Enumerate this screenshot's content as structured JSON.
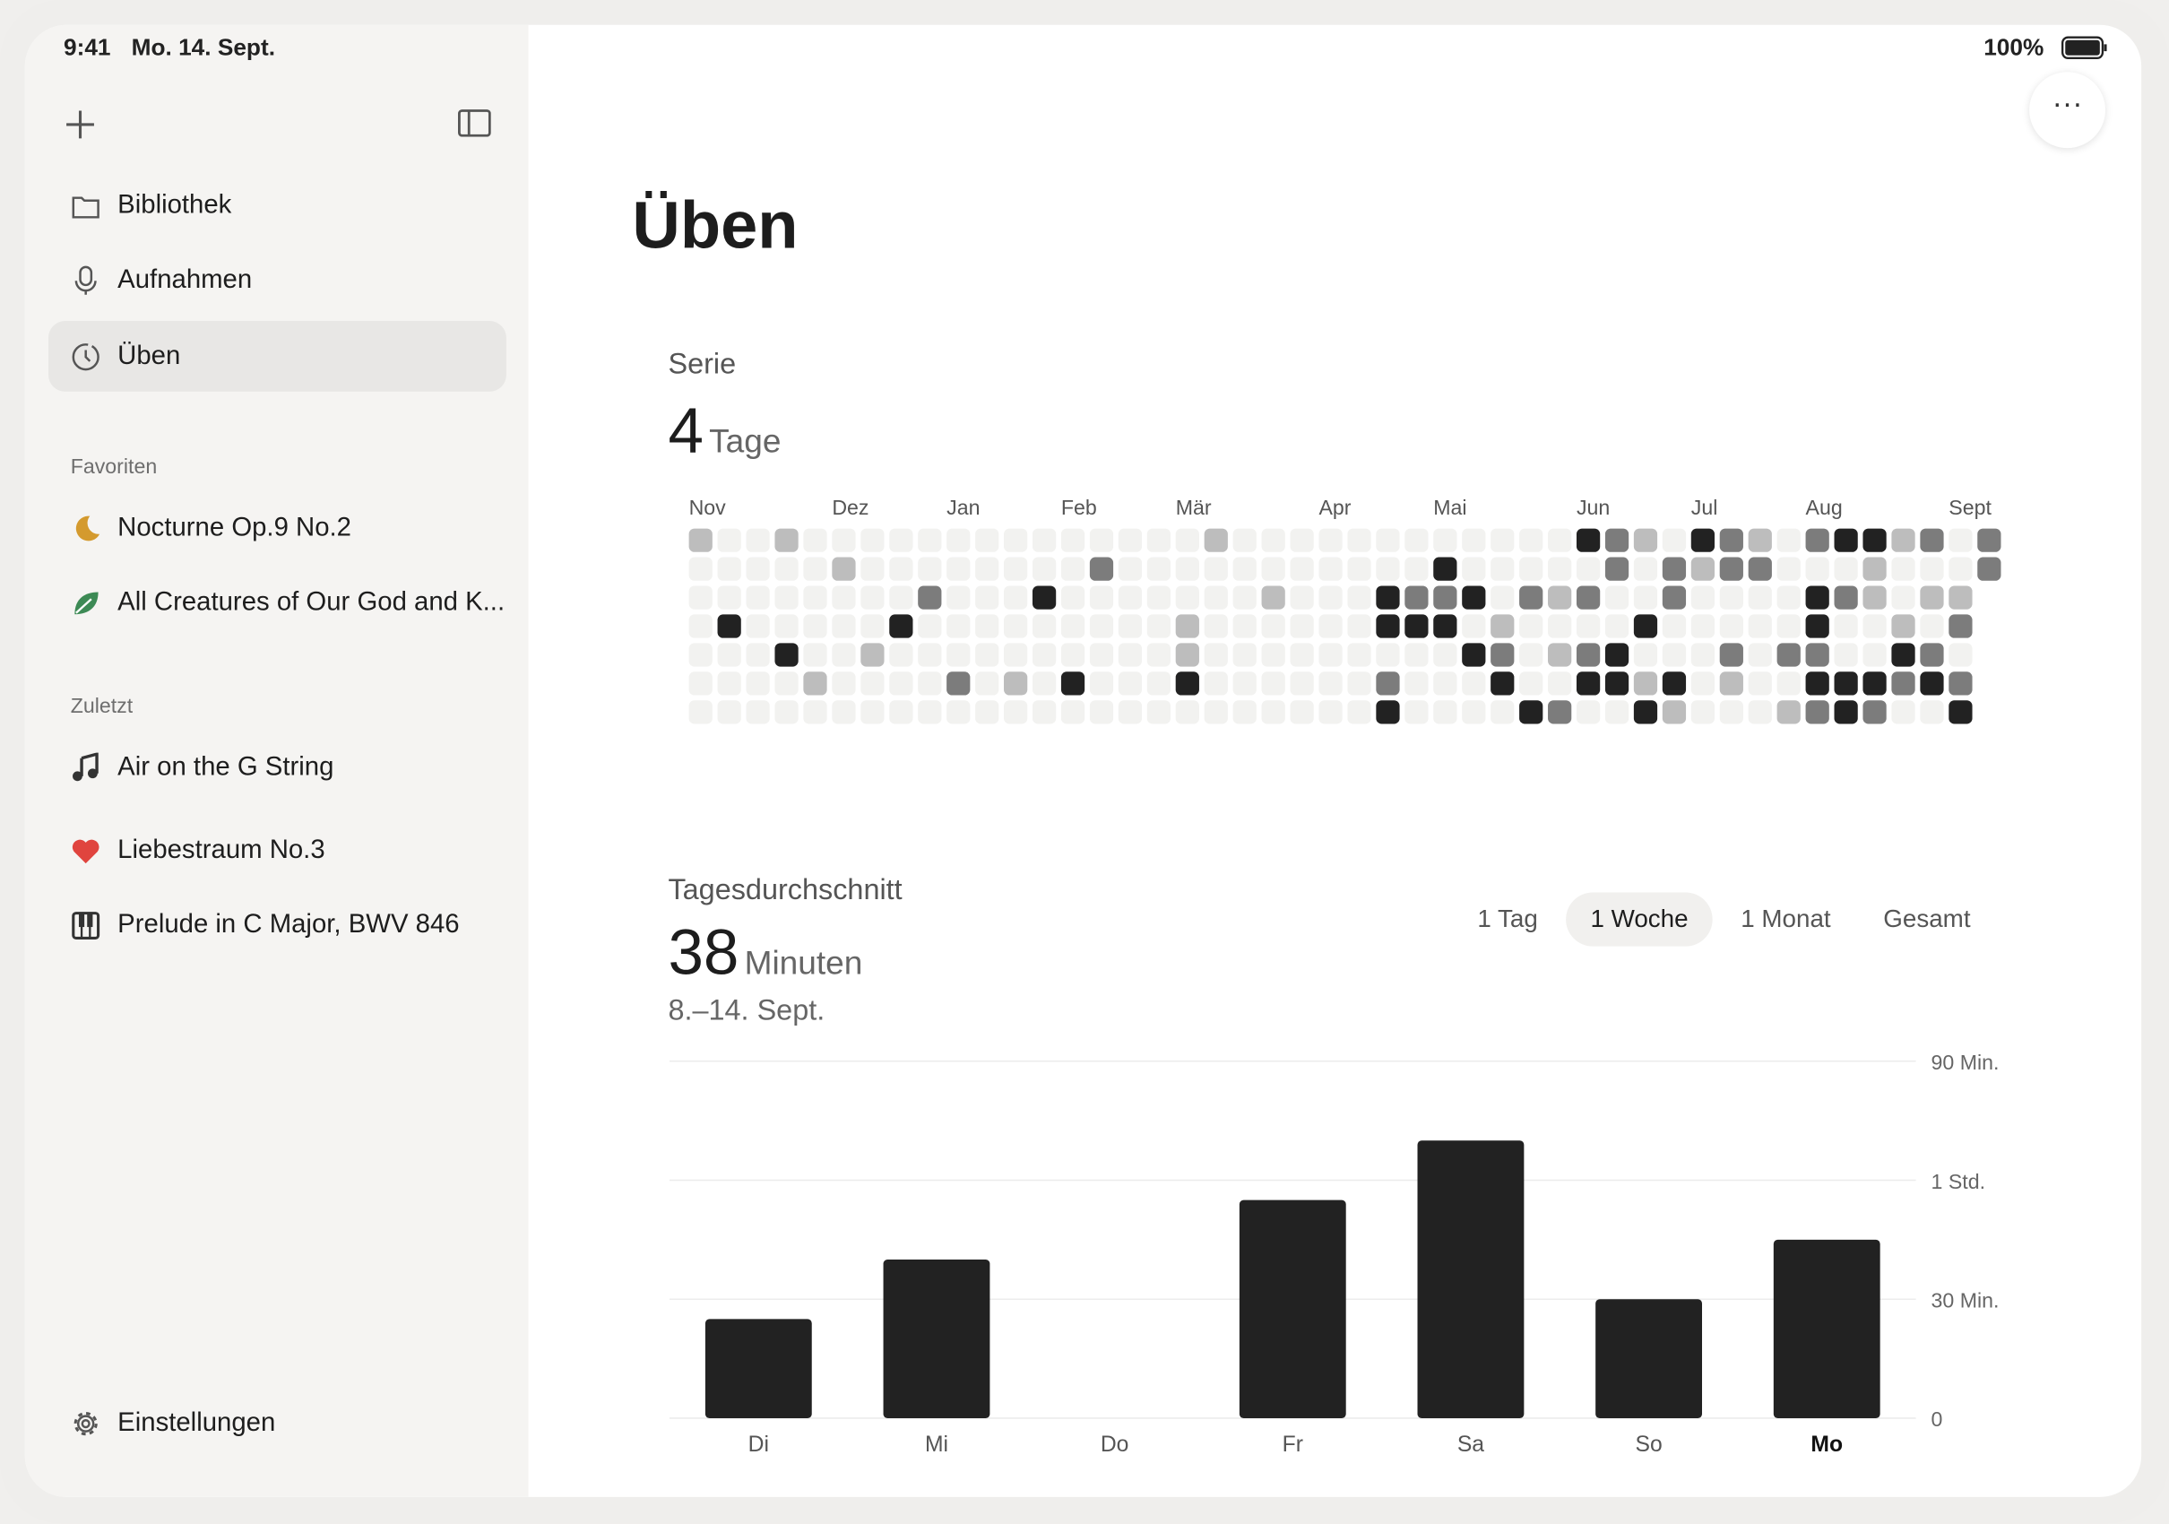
{
  "status_bar": {
    "time": "9:41",
    "date": "Mo. 14. Sept.",
    "battery": "100%"
  },
  "sidebar": {
    "nav": [
      "Bibliothek",
      "Aufnahmen",
      "Üben"
    ],
    "selected_nav": 2,
    "sections": [
      {
        "title": "Favoriten",
        "items": [
          "Nocturne Op.9 No.2",
          "All Creatures of Our God and K..."
        ]
      },
      {
        "title": "Zuletzt",
        "items": [
          "Air on the G String",
          "Liebestraum No.3",
          "Prelude in C Major, BWV 846"
        ]
      }
    ],
    "footer": "Einstellungen"
  },
  "main": {
    "title": "Üben",
    "streak": {
      "label": "Serie",
      "value": 4,
      "unit": "Tage",
      "months": [
        "Nov",
        null,
        null,
        null,
        null,
        "Dez",
        null,
        null,
        null,
        "Jan",
        null,
        null,
        null,
        "Feb",
        null,
        null,
        null,
        "Mär",
        null,
        null,
        null,
        null,
        "Apr",
        null,
        null,
        null,
        "Mai",
        null,
        null,
        null,
        null,
        "Jun",
        null,
        null,
        null,
        "Jul",
        null,
        null,
        null,
        "Aug",
        null,
        null,
        null,
        null,
        "Sept",
        null
      ],
      "levels": [
        [
          1,
          0,
          0,
          1,
          0,
          0,
          0,
          0,
          0,
          0,
          0,
          0,
          0,
          0,
          0,
          0,
          0,
          0,
          1,
          0,
          0,
          0,
          0,
          0,
          0,
          0,
          0,
          0,
          0,
          0,
          0,
          3,
          2,
          1,
          0,
          3,
          2,
          1,
          0,
          2,
          3,
          3,
          1,
          2,
          0,
          2
        ],
        [
          0,
          0,
          0,
          0,
          0,
          1,
          0,
          0,
          0,
          0,
          0,
          0,
          0,
          0,
          2,
          0,
          0,
          0,
          0,
          0,
          0,
          0,
          0,
          0,
          0,
          0,
          3,
          0,
          0,
          0,
          0,
          0,
          2,
          0,
          2,
          1,
          2,
          2,
          0,
          0,
          0,
          1,
          0,
          0,
          0,
          2
        ],
        [
          0,
          0,
          0,
          0,
          0,
          0,
          0,
          0,
          2,
          0,
          0,
          0,
          3,
          0,
          0,
          0,
          0,
          0,
          0,
          0,
          1,
          0,
          0,
          0,
          3,
          2,
          2,
          3,
          0,
          2,
          1,
          2,
          0,
          0,
          2,
          0,
          0,
          0,
          0,
          3,
          2,
          1,
          0,
          1,
          1,
          null
        ],
        [
          0,
          3,
          0,
          0,
          0,
          0,
          0,
          3,
          0,
          0,
          0,
          0,
          0,
          0,
          0,
          0,
          0,
          1,
          0,
          0,
          0,
          0,
          0,
          0,
          3,
          3,
          3,
          0,
          1,
          0,
          0,
          0,
          0,
          3,
          0,
          0,
          0,
          0,
          0,
          3,
          0,
          0,
          1,
          0,
          2,
          null
        ],
        [
          0,
          0,
          0,
          3,
          0,
          0,
          1,
          0,
          0,
          0,
          0,
          0,
          0,
          0,
          0,
          0,
          0,
          1,
          0,
          0,
          0,
          0,
          0,
          0,
          0,
          0,
          0,
          3,
          2,
          0,
          1,
          2,
          3,
          0,
          0,
          0,
          2,
          0,
          2,
          2,
          0,
          0,
          3,
          2,
          0,
          null
        ],
        [
          0,
          0,
          0,
          0,
          1,
          0,
          0,
          0,
          0,
          2,
          0,
          1,
          0,
          3,
          0,
          0,
          0,
          3,
          0,
          0,
          0,
          0,
          0,
          0,
          2,
          0,
          0,
          0,
          3,
          0,
          0,
          3,
          3,
          1,
          3,
          0,
          1,
          0,
          0,
          3,
          3,
          3,
          2,
          3,
          2,
          null
        ],
        [
          0,
          0,
          0,
          0,
          0,
          0,
          0,
          0,
          0,
          0,
          0,
          0,
          0,
          0,
          0,
          0,
          0,
          0,
          0,
          0,
          0,
          0,
          0,
          0,
          3,
          0,
          0,
          0,
          0,
          3,
          2,
          0,
          0,
          3,
          1,
          0,
          0,
          0,
          1,
          2,
          3,
          2,
          0,
          0,
          3,
          null
        ]
      ],
      "colors": [
        "#f2f2f0",
        "#bdbdbd",
        "#7c7c7c",
        "#222222"
      ]
    },
    "average": {
      "label": "Tagesdurchschnitt",
      "value": 38,
      "unit": "Minuten",
      "range": "8.–14. Sept.",
      "segments": [
        "1 Tag",
        "1 Woche",
        "1 Monat",
        "Gesamt"
      ],
      "selected_segment": 1
    }
  },
  "chart_data": {
    "type": "bar",
    "categories": [
      "Di",
      "Mi",
      "Do",
      "Fr",
      "Sa",
      "So",
      "Mo"
    ],
    "values": [
      25,
      40,
      0,
      55,
      70,
      30,
      45
    ],
    "color": "#222222",
    "ylim": [
      0,
      90
    ],
    "yticks": [
      0,
      {
        "value": 30,
        "label": "30 Min."
      },
      {
        "value": 60,
        "label": "1 Std."
      },
      {
        "value": 90,
        "label": "90 Min."
      }
    ],
    "grid": true
  }
}
